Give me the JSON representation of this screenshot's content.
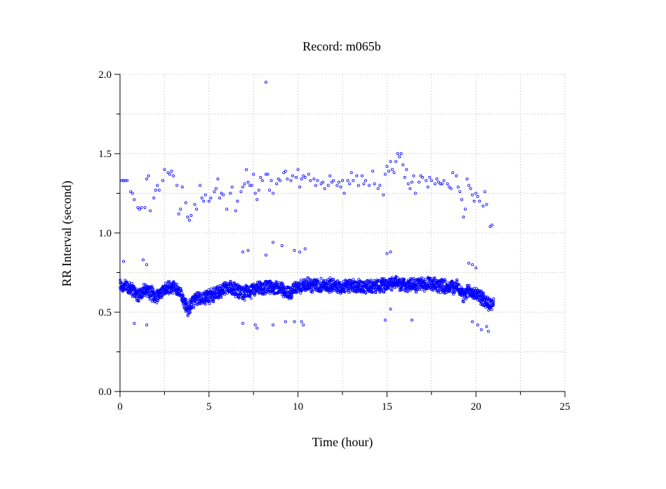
{
  "chart_data": {
    "type": "scatter",
    "title": "Record:  m065b",
    "xlabel": "Time (hour)",
    "ylabel": "RR Interval (second)",
    "xlim": [
      0,
      25
    ],
    "ylim": [
      0.0,
      2.0
    ],
    "xticks": [
      "0",
      "5",
      "10",
      "15",
      "20",
      "25"
    ],
    "yticks": [
      "0.0",
      "0.5",
      "1.0",
      "1.5",
      "2.0"
    ],
    "grid": true,
    "marker": "open-circle",
    "point_color": "#0000ff",
    "grid_color": "#b4b4b4",
    "main_band": [
      [
        0.0,
        0.67
      ],
      [
        0.5,
        0.66
      ],
      [
        1.0,
        0.61
      ],
      [
        1.5,
        0.64
      ],
      [
        2.0,
        0.6
      ],
      [
        2.5,
        0.64
      ],
      [
        3.0,
        0.66
      ],
      [
        3.5,
        0.6
      ],
      [
        3.8,
        0.52
      ],
      [
        4.2,
        0.58
      ],
      [
        5.0,
        0.6
      ],
      [
        5.5,
        0.62
      ],
      [
        6.0,
        0.66
      ],
      [
        6.5,
        0.64
      ],
      [
        7.0,
        0.62
      ],
      [
        7.5,
        0.64
      ],
      [
        8.0,
        0.65
      ],
      [
        8.5,
        0.66
      ],
      [
        9.0,
        0.65
      ],
      [
        9.5,
        0.62
      ],
      [
        10.0,
        0.66
      ],
      [
        10.5,
        0.67
      ],
      [
        11.0,
        0.67
      ],
      [
        11.5,
        0.67
      ],
      [
        12.0,
        0.67
      ],
      [
        12.5,
        0.66
      ],
      [
        13.0,
        0.67
      ],
      [
        13.5,
        0.66
      ],
      [
        14.0,
        0.67
      ],
      [
        14.5,
        0.66
      ],
      [
        15.0,
        0.68
      ],
      [
        15.5,
        0.69
      ],
      [
        16.0,
        0.67
      ],
      [
        16.5,
        0.67
      ],
      [
        17.0,
        0.68
      ],
      [
        17.5,
        0.67
      ],
      [
        18.0,
        0.67
      ],
      [
        18.5,
        0.66
      ],
      [
        19.0,
        0.66
      ],
      [
        19.3,
        0.6
      ],
      [
        19.6,
        0.64
      ],
      [
        20.0,
        0.62
      ],
      [
        20.4,
        0.58
      ],
      [
        20.8,
        0.55
      ],
      [
        21.0,
        0.56
      ]
    ],
    "band_spread": 0.05,
    "upper_points": [
      [
        0.1,
        1.33
      ],
      [
        0.2,
        1.33
      ],
      [
        0.3,
        1.33
      ],
      [
        0.4,
        1.33
      ],
      [
        0.6,
        1.26
      ],
      [
        0.7,
        1.25
      ],
      [
        0.8,
        1.21
      ],
      [
        1.0,
        1.16
      ],
      [
        1.1,
        1.15
      ],
      [
        1.2,
        1.16
      ],
      [
        1.4,
        1.16
      ],
      [
        1.5,
        1.34
      ],
      [
        1.6,
        1.36
      ],
      [
        1.7,
        1.14
      ],
      [
        1.9,
        1.22
      ],
      [
        2.0,
        1.27
      ],
      [
        2.1,
        1.3
      ],
      [
        2.2,
        1.27
      ],
      [
        2.4,
        1.33
      ],
      [
        2.5,
        1.4
      ],
      [
        2.7,
        1.38
      ],
      [
        2.8,
        1.37
      ],
      [
        2.9,
        1.39
      ],
      [
        3.0,
        1.36
      ],
      [
        3.2,
        1.3
      ],
      [
        3.3,
        1.12
      ],
      [
        3.4,
        1.15
      ],
      [
        3.5,
        1.29
      ],
      [
        3.7,
        1.19
      ],
      [
        3.8,
        1.1
      ],
      [
        3.9,
        1.08
      ],
      [
        4.0,
        1.11
      ],
      [
        4.2,
        1.18
      ],
      [
        4.3,
        1.15
      ],
      [
        4.5,
        1.3
      ],
      [
        4.6,
        1.22
      ],
      [
        4.7,
        1.2
      ],
      [
        4.8,
        1.24
      ],
      [
        5.0,
        1.2
      ],
      [
        5.1,
        1.22
      ],
      [
        5.3,
        1.26
      ],
      [
        5.4,
        1.28
      ],
      [
        5.5,
        1.34
      ],
      [
        5.6,
        1.22
      ],
      [
        5.7,
        1.25
      ],
      [
        5.8,
        1.24
      ],
      [
        6.0,
        1.15
      ],
      [
        6.2,
        1.25
      ],
      [
        6.3,
        1.29
      ],
      [
        6.5,
        1.14
      ],
      [
        6.6,
        1.2
      ],
      [
        6.8,
        1.26
      ],
      [
        6.9,
        1.29
      ],
      [
        7.0,
        1.31
      ],
      [
        7.1,
        1.4
      ],
      [
        7.2,
        1.32
      ],
      [
        7.3,
        1.3
      ],
      [
        7.4,
        1.3
      ],
      [
        7.5,
        1.37
      ],
      [
        7.6,
        1.25
      ],
      [
        7.7,
        1.21
      ],
      [
        7.8,
        1.27
      ],
      [
        7.9,
        1.35
      ],
      [
        8.0,
        1.33
      ],
      [
        8.2,
        1.37
      ],
      [
        8.3,
        1.37
      ],
      [
        8.4,
        1.27
      ],
      [
        8.5,
        1.33
      ],
      [
        8.6,
        1.25
      ],
      [
        8.8,
        1.31
      ],
      [
        8.9,
        1.34
      ],
      [
        9.0,
        1.33
      ],
      [
        9.2,
        1.38
      ],
      [
        9.3,
        1.39
      ],
      [
        9.4,
        1.34
      ],
      [
        9.6,
        1.33
      ],
      [
        9.7,
        1.36
      ],
      [
        9.9,
        1.35
      ],
      [
        10.0,
        1.4
      ],
      [
        10.1,
        1.29
      ],
      [
        10.2,
        1.34
      ],
      [
        10.3,
        1.36
      ],
      [
        10.4,
        1.35
      ],
      [
        10.6,
        1.37
      ],
      [
        10.7,
        1.33
      ],
      [
        10.9,
        1.34
      ],
      [
        11.0,
        1.3
      ],
      [
        11.1,
        1.33
      ],
      [
        11.3,
        1.31
      ],
      [
        11.4,
        1.32
      ],
      [
        11.5,
        1.28
      ],
      [
        11.7,
        1.3
      ],
      [
        11.8,
        1.36
      ],
      [
        11.9,
        1.32
      ],
      [
        12.0,
        1.33
      ],
      [
        12.2,
        1.3
      ],
      [
        12.3,
        1.32
      ],
      [
        12.4,
        1.29
      ],
      [
        12.5,
        1.33
      ],
      [
        12.6,
        1.25
      ],
      [
        12.8,
        1.33
      ],
      [
        12.9,
        1.31
      ],
      [
        13.0,
        1.38
      ],
      [
        13.1,
        1.33
      ],
      [
        13.3,
        1.36
      ],
      [
        13.4,
        1.3
      ],
      [
        13.6,
        1.36
      ],
      [
        13.7,
        1.31
      ],
      [
        13.8,
        1.33
      ],
      [
        14.0,
        1.3
      ],
      [
        14.2,
        1.39
      ],
      [
        14.3,
        1.31
      ],
      [
        14.5,
        1.28
      ],
      [
        14.6,
        1.3
      ],
      [
        14.8,
        1.24
      ],
      [
        14.9,
        1.37
      ],
      [
        15.0,
        1.42
      ],
      [
        15.1,
        1.39
      ],
      [
        15.2,
        1.45
      ],
      [
        15.3,
        1.4
      ],
      [
        15.4,
        1.38
      ],
      [
        15.5,
        1.45
      ],
      [
        15.6,
        1.5
      ],
      [
        15.7,
        1.48
      ],
      [
        15.8,
        1.5
      ],
      [
        15.9,
        1.43
      ],
      [
        16.0,
        1.35
      ],
      [
        16.1,
        1.4
      ],
      [
        16.2,
        1.31
      ],
      [
        16.3,
        1.28
      ],
      [
        16.4,
        1.32
      ],
      [
        16.5,
        1.36
      ],
      [
        16.6,
        1.25
      ],
      [
        16.8,
        1.32
      ],
      [
        16.9,
        1.36
      ],
      [
        17.0,
        1.35
      ],
      [
        17.2,
        1.33
      ],
      [
        17.3,
        1.29
      ],
      [
        17.4,
        1.35
      ],
      [
        17.5,
        1.33
      ],
      [
        17.7,
        1.31
      ],
      [
        17.8,
        1.34
      ],
      [
        17.9,
        1.32
      ],
      [
        18.0,
        1.31
      ],
      [
        18.1,
        1.31
      ],
      [
        18.2,
        1.33
      ],
      [
        18.4,
        1.31
      ],
      [
        18.5,
        1.29
      ],
      [
        18.6,
        1.28
      ],
      [
        18.7,
        1.38
      ],
      [
        18.9,
        1.36
      ],
      [
        19.0,
        1.29
      ],
      [
        19.1,
        1.26
      ],
      [
        19.2,
        1.21
      ],
      [
        19.3,
        1.1
      ],
      [
        19.4,
        1.15
      ],
      [
        19.5,
        1.34
      ],
      [
        19.6,
        1.3
      ],
      [
        19.7,
        1.28
      ],
      [
        19.8,
        1.24
      ],
      [
        19.9,
        1.2
      ],
      [
        20.0,
        1.25
      ],
      [
        20.1,
        1.23
      ],
      [
        20.2,
        1.2
      ],
      [
        20.4,
        1.17
      ],
      [
        20.5,
        1.26
      ],
      [
        20.6,
        1.18
      ],
      [
        20.8,
        1.04
      ],
      [
        20.9,
        1.05
      ],
      [
        8.2,
        1.95
      ]
    ],
    "outliers": [
      [
        0.2,
        0.82
      ],
      [
        0.8,
        0.43
      ],
      [
        1.3,
        0.83
      ],
      [
        1.5,
        0.8
      ],
      [
        1.5,
        0.42
      ],
      [
        6.9,
        0.88
      ],
      [
        6.9,
        0.43
      ],
      [
        7.2,
        0.89
      ],
      [
        7.6,
        0.42
      ],
      [
        7.7,
        0.4
      ],
      [
        8.2,
        0.86
      ],
      [
        8.6,
        0.94
      ],
      [
        8.6,
        0.42
      ],
      [
        9.1,
        0.92
      ],
      [
        9.3,
        0.44
      ],
      [
        9.8,
        0.89
      ],
      [
        9.8,
        0.44
      ],
      [
        10.1,
        0.88
      ],
      [
        10.2,
        0.44
      ],
      [
        10.4,
        0.9
      ],
      [
        10.3,
        0.42
      ],
      [
        14.9,
        0.45
      ],
      [
        15.0,
        0.87
      ],
      [
        15.2,
        0.88
      ],
      [
        15.2,
        0.52
      ],
      [
        16.4,
        0.45
      ],
      [
        19.6,
        0.81
      ],
      [
        19.8,
        0.8
      ],
      [
        19.8,
        0.44
      ],
      [
        20.0,
        0.78
      ],
      [
        20.1,
        0.42
      ],
      [
        20.3,
        0.39
      ],
      [
        20.6,
        0.41
      ],
      [
        20.7,
        0.38
      ]
    ]
  }
}
